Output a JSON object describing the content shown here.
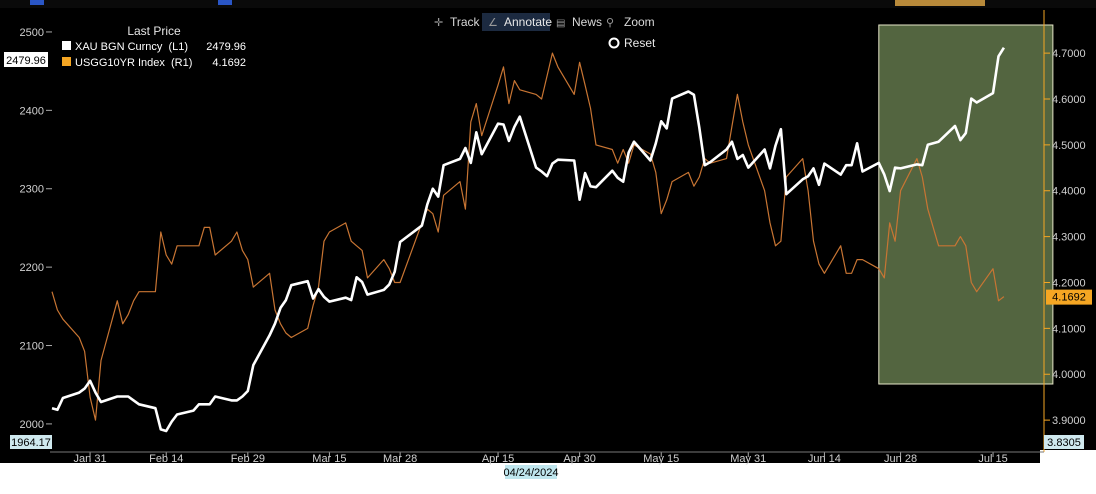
{
  "toolbar": {
    "track_label": "Track",
    "annotate_label": "Annotate",
    "news_label": "News",
    "zoom_label": "Zoom",
    "reset_label": "Reset"
  },
  "legend": {
    "title": "Last Price",
    "items": [
      {
        "name": "XAU BGN Curncy  (L1)",
        "value": "2479.96",
        "color": "#ffffff"
      },
      {
        "name": "USGG10YR Index  (R1)",
        "value": "4.1692",
        "color": "#f5a623"
      }
    ]
  },
  "badges": {
    "left_top": "2479.96",
    "left_bottom": "1964.17",
    "right_current": "4.1692",
    "right_bottom": "3.8305",
    "cursor_date": "04/24/2024"
  },
  "colors": {
    "background": "#000000",
    "gold_line": "#ffffff",
    "yield_line": "#c87533",
    "highlight_box": "#556b3f",
    "axis_text": "#d0d0d0",
    "right_axis_accent": "#f5a623"
  },
  "chart_data": {
    "type": "line",
    "x_ticks": [
      "Jan 31",
      "Feb 14",
      "Feb 29",
      "Mar 15",
      "Mar 28",
      "Apr 15",
      "Apr 30",
      "May 15",
      "May 31",
      "Jun 14",
      "Jun 28",
      "Jul 15"
    ],
    "x_range": [
      "2024-01-24",
      "2024-07-24"
    ],
    "y_left": {
      "ticks": [
        2000,
        2100,
        2200,
        2300,
        2400,
        2500
      ],
      "range": [
        1964.17,
        2528
      ]
    },
    "y_right": {
      "ticks": [
        "3.9000",
        "4.0000",
        "4.1000",
        "4.2000",
        "4.3000",
        "4.4000",
        "4.5000",
        "4.6000",
        "4.7000"
      ],
      "range": [
        3.8305,
        4.794
      ]
    },
    "highlight": {
      "x_start": "2024-06-24",
      "x_end": "2024-07-26"
    },
    "series": [
      {
        "name": "XAU BGN Curncy",
        "axis": "left",
        "points": [
          [
            "2024-01-24",
            2020
          ],
          [
            "2024-01-25",
            2018
          ],
          [
            "2024-01-26",
            2033
          ],
          [
            "2024-01-29",
            2040
          ],
          [
            "2024-01-30",
            2045
          ],
          [
            "2024-01-31",
            2055
          ],
          [
            "2024-02-01",
            2040
          ],
          [
            "2024-02-02",
            2028
          ],
          [
            "2024-02-05",
            2035
          ],
          [
            "2024-02-06",
            2035
          ],
          [
            "2024-02-07",
            2035
          ],
          [
            "2024-02-08",
            2030
          ],
          [
            "2024-02-09",
            2025
          ],
          [
            "2024-02-12",
            2020
          ],
          [
            "2024-02-13",
            1993
          ],
          [
            "2024-02-14",
            1991
          ],
          [
            "2024-02-15",
            2003
          ],
          [
            "2024-02-16",
            2012
          ],
          [
            "2024-02-19",
            2017
          ],
          [
            "2024-02-20",
            2025
          ],
          [
            "2024-02-21",
            2025
          ],
          [
            "2024-02-22",
            2025
          ],
          [
            "2024-02-23",
            2035
          ],
          [
            "2024-02-26",
            2030
          ],
          [
            "2024-02-27",
            2030
          ],
          [
            "2024-02-28",
            2035
          ],
          [
            "2024-02-29",
            2042
          ],
          [
            "2024-03-01",
            2075
          ],
          [
            "2024-03-04",
            2113
          ],
          [
            "2024-03-05",
            2128
          ],
          [
            "2024-03-06",
            2148
          ],
          [
            "2024-03-07",
            2158
          ],
          [
            "2024-03-08",
            2177
          ],
          [
            "2024-03-11",
            2182
          ],
          [
            "2024-03-12",
            2160
          ],
          [
            "2024-03-13",
            2172
          ],
          [
            "2024-03-14",
            2162
          ],
          [
            "2024-03-15",
            2156
          ],
          [
            "2024-03-18",
            2161
          ],
          [
            "2024-03-19",
            2158
          ],
          [
            "2024-03-20",
            2187
          ],
          [
            "2024-03-21",
            2181
          ],
          [
            "2024-03-22",
            2165
          ],
          [
            "2024-03-25",
            2171
          ],
          [
            "2024-03-26",
            2178
          ],
          [
            "2024-03-27",
            2194
          ],
          [
            "2024-03-28",
            2232
          ],
          [
            "2024-04-01",
            2253
          ],
          [
            "2024-04-02",
            2280
          ],
          [
            "2024-04-03",
            2300
          ],
          [
            "2024-04-04",
            2290
          ],
          [
            "2024-04-05",
            2330
          ],
          [
            "2024-04-08",
            2338
          ],
          [
            "2024-04-09",
            2352
          ],
          [
            "2024-04-10",
            2333
          ],
          [
            "2024-04-11",
            2372
          ],
          [
            "2024-04-12",
            2344
          ],
          [
            "2024-04-15",
            2383
          ],
          [
            "2024-04-16",
            2382
          ],
          [
            "2024-04-17",
            2361
          ],
          [
            "2024-04-18",
            2379
          ],
          [
            "2024-04-19",
            2392
          ],
          [
            "2024-04-22",
            2327
          ],
          [
            "2024-04-23",
            2322
          ],
          [
            "2024-04-24",
            2316
          ],
          [
            "2024-04-25",
            2332
          ],
          [
            "2024-04-26",
            2337
          ],
          [
            "2024-04-29",
            2336
          ],
          [
            "2024-04-30",
            2286
          ],
          [
            "2024-05-01",
            2320
          ],
          [
            "2024-05-02",
            2303
          ],
          [
            "2024-05-03",
            2302
          ],
          [
            "2024-05-06",
            2323
          ],
          [
            "2024-05-07",
            2314
          ],
          [
            "2024-05-08",
            2309
          ],
          [
            "2024-05-09",
            2346
          ],
          [
            "2024-05-10",
            2360
          ],
          [
            "2024-05-13",
            2336
          ],
          [
            "2024-05-14",
            2358
          ],
          [
            "2024-05-15",
            2386
          ],
          [
            "2024-05-16",
            2377
          ],
          [
            "2024-05-17",
            2415
          ],
          [
            "2024-05-20",
            2424
          ],
          [
            "2024-05-21",
            2420
          ],
          [
            "2024-05-22",
            2378
          ],
          [
            "2024-05-23",
            2330
          ],
          [
            "2024-05-24",
            2334
          ],
          [
            "2024-05-27",
            2350
          ],
          [
            "2024-05-28",
            2360
          ],
          [
            "2024-05-29",
            2338
          ],
          [
            "2024-05-30",
            2343
          ],
          [
            "2024-05-31",
            2327
          ],
          [
            "2024-06-03",
            2350
          ],
          [
            "2024-06-04",
            2326
          ],
          [
            "2024-06-05",
            2355
          ],
          [
            "2024-06-06",
            2376
          ],
          [
            "2024-06-07",
            2293
          ],
          [
            "2024-06-10",
            2312
          ],
          [
            "2024-06-11",
            2316
          ],
          [
            "2024-06-12",
            2326
          ],
          [
            "2024-06-13",
            2305
          ],
          [
            "2024-06-14",
            2332
          ],
          [
            "2024-06-17",
            2318
          ],
          [
            "2024-06-18",
            2330
          ],
          [
            "2024-06-19",
            2330
          ],
          [
            "2024-06-20",
            2358
          ],
          [
            "2024-06-21",
            2322
          ],
          [
            "2024-06-24",
            2333
          ],
          [
            "2024-06-25",
            2318
          ],
          [
            "2024-06-26",
            2297
          ],
          [
            "2024-06-27",
            2327
          ],
          [
            "2024-06-28",
            2326
          ],
          [
            "2024-07-01",
            2331
          ],
          [
            "2024-07-02",
            2330
          ],
          [
            "2024-07-03",
            2356
          ],
          [
            "2024-07-05",
            2360
          ],
          [
            "2024-07-08",
            2380
          ],
          [
            "2024-07-09",
            2362
          ],
          [
            "2024-07-10",
            2371
          ],
          [
            "2024-07-11",
            2415
          ],
          [
            "2024-07-12",
            2410
          ],
          [
            "2024-07-15",
            2422
          ],
          [
            "2024-07-16",
            2469
          ],
          [
            "2024-07-17",
            2479.96
          ]
        ]
      },
      {
        "name": "USGG10YR Index",
        "axis": "right",
        "points": [
          [
            "2024-01-24",
            4.18
          ],
          [
            "2024-01-25",
            4.14
          ],
          [
            "2024-01-26",
            4.12
          ],
          [
            "2024-01-29",
            4.08
          ],
          [
            "2024-01-30",
            4.05
          ],
          [
            "2024-01-31",
            3.95
          ],
          [
            "2024-02-01",
            3.9
          ],
          [
            "2024-02-02",
            4.03
          ],
          [
            "2024-02-05",
            4.16
          ],
          [
            "2024-02-06",
            4.11
          ],
          [
            "2024-02-07",
            4.13
          ],
          [
            "2024-02-08",
            4.16
          ],
          [
            "2024-02-09",
            4.18
          ],
          [
            "2024-02-12",
            4.18
          ],
          [
            "2024-02-13",
            4.31
          ],
          [
            "2024-02-14",
            4.26
          ],
          [
            "2024-02-15",
            4.24
          ],
          [
            "2024-02-16",
            4.28
          ],
          [
            "2024-02-19",
            4.28
          ],
          [
            "2024-02-20",
            4.28
          ],
          [
            "2024-02-21",
            4.32
          ],
          [
            "2024-02-22",
            4.32
          ],
          [
            "2024-02-23",
            4.26
          ],
          [
            "2024-02-26",
            4.29
          ],
          [
            "2024-02-27",
            4.31
          ],
          [
            "2024-02-28",
            4.27
          ],
          [
            "2024-02-29",
            4.25
          ],
          [
            "2024-03-01",
            4.19
          ],
          [
            "2024-03-04",
            4.22
          ],
          [
            "2024-03-05",
            4.14
          ],
          [
            "2024-03-06",
            4.11
          ],
          [
            "2024-03-07",
            4.09
          ],
          [
            "2024-03-08",
            4.08
          ],
          [
            "2024-03-11",
            4.1
          ],
          [
            "2024-03-12",
            4.15
          ],
          [
            "2024-03-13",
            4.19
          ],
          [
            "2024-03-14",
            4.29
          ],
          [
            "2024-03-15",
            4.31
          ],
          [
            "2024-03-18",
            4.33
          ],
          [
            "2024-03-19",
            4.29
          ],
          [
            "2024-03-20",
            4.28
          ],
          [
            "2024-03-21",
            4.27
          ],
          [
            "2024-03-22",
            4.21
          ],
          [
            "2024-03-25",
            4.25
          ],
          [
            "2024-03-26",
            4.23
          ],
          [
            "2024-03-27",
            4.2
          ],
          [
            "2024-03-28",
            4.2
          ],
          [
            "2024-04-01",
            4.33
          ],
          [
            "2024-04-02",
            4.36
          ],
          [
            "2024-04-03",
            4.35
          ],
          [
            "2024-04-04",
            4.31
          ],
          [
            "2024-04-05",
            4.39
          ],
          [
            "2024-04-08",
            4.42
          ],
          [
            "2024-04-09",
            4.36
          ],
          [
            "2024-04-10",
            4.55
          ],
          [
            "2024-04-11",
            4.59
          ],
          [
            "2024-04-12",
            4.52
          ],
          [
            "2024-04-15",
            4.63
          ],
          [
            "2024-04-16",
            4.67
          ],
          [
            "2024-04-17",
            4.59
          ],
          [
            "2024-04-18",
            4.64
          ],
          [
            "2024-04-19",
            4.62
          ],
          [
            "2024-04-22",
            4.61
          ],
          [
            "2024-04-23",
            4.6
          ],
          [
            "2024-04-24",
            4.65
          ],
          [
            "2024-04-25",
            4.7
          ],
          [
            "2024-04-26",
            4.67
          ],
          [
            "2024-04-29",
            4.61
          ],
          [
            "2024-04-30",
            4.68
          ],
          [
            "2024-05-01",
            4.63
          ],
          [
            "2024-05-02",
            4.58
          ],
          [
            "2024-05-03",
            4.5
          ],
          [
            "2024-05-06",
            4.49
          ],
          [
            "2024-05-07",
            4.46
          ],
          [
            "2024-05-08",
            4.49
          ],
          [
            "2024-05-09",
            4.46
          ],
          [
            "2024-05-10",
            4.5
          ],
          [
            "2024-05-13",
            4.48
          ],
          [
            "2024-05-14",
            4.44
          ],
          [
            "2024-05-15",
            4.35
          ],
          [
            "2024-05-16",
            4.38
          ],
          [
            "2024-05-17",
            4.42
          ],
          [
            "2024-05-20",
            4.44
          ],
          [
            "2024-05-21",
            4.41
          ],
          [
            "2024-05-22",
            4.43
          ],
          [
            "2024-05-23",
            4.47
          ],
          [
            "2024-05-24",
            4.46
          ],
          [
            "2024-05-27",
            4.47
          ],
          [
            "2024-05-28",
            4.54
          ],
          [
            "2024-05-29",
            4.61
          ],
          [
            "2024-05-30",
            4.55
          ],
          [
            "2024-05-31",
            4.5
          ],
          [
            "2024-06-03",
            4.4
          ],
          [
            "2024-06-04",
            4.33
          ],
          [
            "2024-06-05",
            4.28
          ],
          [
            "2024-06-06",
            4.29
          ],
          [
            "2024-06-07",
            4.43
          ],
          [
            "2024-06-10",
            4.47
          ],
          [
            "2024-06-11",
            4.4
          ],
          [
            "2024-06-12",
            4.29
          ],
          [
            "2024-06-13",
            4.24
          ],
          [
            "2024-06-14",
            4.22
          ],
          [
            "2024-06-17",
            4.28
          ],
          [
            "2024-06-18",
            4.22
          ],
          [
            "2024-06-19",
            4.22
          ],
          [
            "2024-06-20",
            4.25
          ],
          [
            "2024-06-21",
            4.25
          ],
          [
            "2024-06-24",
            4.23
          ],
          [
            "2024-06-25",
            4.21
          ],
          [
            "2024-06-26",
            4.33
          ],
          [
            "2024-06-27",
            4.29
          ],
          [
            "2024-06-28",
            4.4
          ],
          [
            "2024-07-01",
            4.47
          ],
          [
            "2024-07-02",
            4.43
          ],
          [
            "2024-07-03",
            4.36
          ],
          [
            "2024-07-05",
            4.28
          ],
          [
            "2024-07-08",
            4.28
          ],
          [
            "2024-07-09",
            4.3
          ],
          [
            "2024-07-10",
            4.28
          ],
          [
            "2024-07-11",
            4.2
          ],
          [
            "2024-07-12",
            4.18
          ],
          [
            "2024-07-15",
            4.23
          ],
          [
            "2024-07-16",
            4.16
          ],
          [
            "2024-07-17",
            4.1692
          ]
        ]
      }
    ]
  }
}
